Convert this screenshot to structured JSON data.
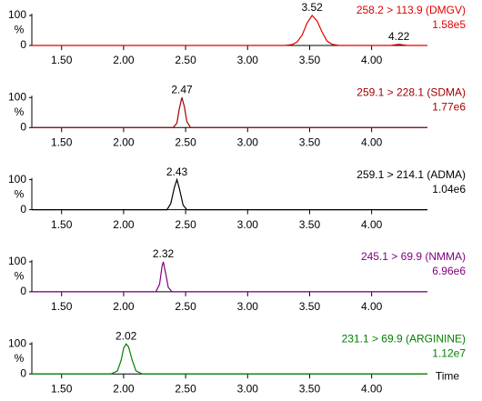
{
  "chart_data": [
    {
      "type": "line",
      "title": "258.2 > 113.9 (DMGV)",
      "subtitle": "1.58e5",
      "color": "#e00000",
      "ylabel": "%",
      "x": [
        1.26,
        3.3,
        3.36,
        3.4,
        3.44,
        3.48,
        3.52,
        3.56,
        3.6,
        3.64,
        3.68,
        3.74,
        4.15,
        4.22,
        4.29,
        4.45
      ],
      "values": [
        0,
        0,
        3,
        12,
        35,
        75,
        100,
        82,
        45,
        15,
        4,
        0,
        0,
        4,
        0,
        0
      ],
      "peak_labels": [
        3.52,
        4.22
      ],
      "xlim": [
        1.26,
        4.45
      ],
      "ylim": [
        0,
        100
      ],
      "yticks": [
        0,
        100
      ],
      "xticks": [
        {
          "value": 1.5,
          "label": "1.50"
        },
        {
          "value": 2,
          "label": "2.00"
        },
        {
          "value": 2.5,
          "label": "2.50"
        },
        {
          "value": 3,
          "label": "3.00"
        },
        {
          "value": 3.5,
          "label": "3.50"
        },
        {
          "value": 4,
          "label": "4.00"
        }
      ]
    },
    {
      "type": "line",
      "title": "259.1 > 228.1 (SDMA)",
      "subtitle": "1.77e6",
      "color": "#a00000",
      "ylabel": "%",
      "x": [
        1.26,
        2.4,
        2.43,
        2.45,
        2.47,
        2.49,
        2.51,
        2.54,
        4.45
      ],
      "values": [
        0,
        0,
        15,
        65,
        100,
        70,
        20,
        0,
        0
      ],
      "peak_labels": [
        2.47
      ],
      "xlim": [
        1.26,
        4.45
      ],
      "ylim": [
        0,
        100
      ],
      "yticks": [
        0,
        100
      ],
      "xticks": [
        {
          "value": 1.5,
          "label": "1.50"
        },
        {
          "value": 2,
          "label": "2.00"
        },
        {
          "value": 2.5,
          "label": "2.50"
        },
        {
          "value": 3,
          "label": "3.00"
        },
        {
          "value": 3.5,
          "label": "3.50"
        },
        {
          "value": 4,
          "label": "4.00"
        }
      ]
    },
    {
      "type": "line",
      "title": "259.1 > 214.1 (ADMA)",
      "subtitle": "1.04e6",
      "color": "#000000",
      "ylabel": "%",
      "x": [
        1.26,
        2.35,
        2.38,
        2.41,
        2.43,
        2.45,
        2.48,
        2.51,
        4.45
      ],
      "values": [
        0,
        0,
        20,
        75,
        100,
        70,
        15,
        0,
        0
      ],
      "peak_labels": [
        2.43
      ],
      "xlim": [
        1.26,
        4.45
      ],
      "ylim": [
        0,
        100
      ],
      "yticks": [
        0,
        100
      ],
      "xticks": [
        {
          "value": 1.5,
          "label": "1.50"
        },
        {
          "value": 2,
          "label": "2.00"
        },
        {
          "value": 2.5,
          "label": "2.50"
        },
        {
          "value": 3,
          "label": "3.00"
        },
        {
          "value": 3.5,
          "label": "3.50"
        },
        {
          "value": 4,
          "label": "4.00"
        }
      ]
    },
    {
      "type": "line",
      "title": "245.1 > 69.9 (NMMA)",
      "subtitle": "6.96e6",
      "color": "#800080",
      "ylabel": "%",
      "x": [
        1.26,
        2.26,
        2.29,
        2.31,
        2.32,
        2.34,
        2.36,
        2.39,
        4.45
      ],
      "values": [
        0,
        0,
        25,
        85,
        100,
        60,
        15,
        0,
        0
      ],
      "peak_labels": [
        2.32
      ],
      "xlim": [
        1.26,
        4.45
      ],
      "ylim": [
        0,
        100
      ],
      "yticks": [
        0,
        100
      ],
      "xticks": [
        {
          "value": 1.5,
          "label": "1.50"
        },
        {
          "value": 2,
          "label": "2.00"
        },
        {
          "value": 2.5,
          "label": "2.50"
        },
        {
          "value": 3,
          "label": "3.00"
        },
        {
          "value": 3.5,
          "label": "3.50"
        },
        {
          "value": 4,
          "label": "4.00"
        }
      ]
    },
    {
      "type": "line",
      "title": "231.1 > 69.9 (ARGININE)",
      "subtitle": "1.12e7",
      "color": "#008000",
      "ylabel": "%",
      "xlabel": "Time",
      "x": [
        1.26,
        1.9,
        1.95,
        1.98,
        2.0,
        2.02,
        2.04,
        2.07,
        2.1,
        2.15,
        4.45
      ],
      "values": [
        0,
        0,
        10,
        45,
        85,
        100,
        90,
        45,
        10,
        0,
        0
      ],
      "peak_labels": [
        2.02
      ],
      "xlim": [
        1.26,
        4.45
      ],
      "ylim": [
        0,
        100
      ],
      "yticks": [
        0,
        100
      ],
      "xticks": [
        {
          "value": 1.5,
          "label": "1.50"
        },
        {
          "value": 2,
          "label": "2.00"
        },
        {
          "value": 2.5,
          "label": "2.50"
        },
        {
          "value": 3,
          "label": "3.00"
        },
        {
          "value": 3.5,
          "label": "3.50"
        },
        {
          "value": 4,
          "label": "4.00"
        }
      ]
    }
  ]
}
